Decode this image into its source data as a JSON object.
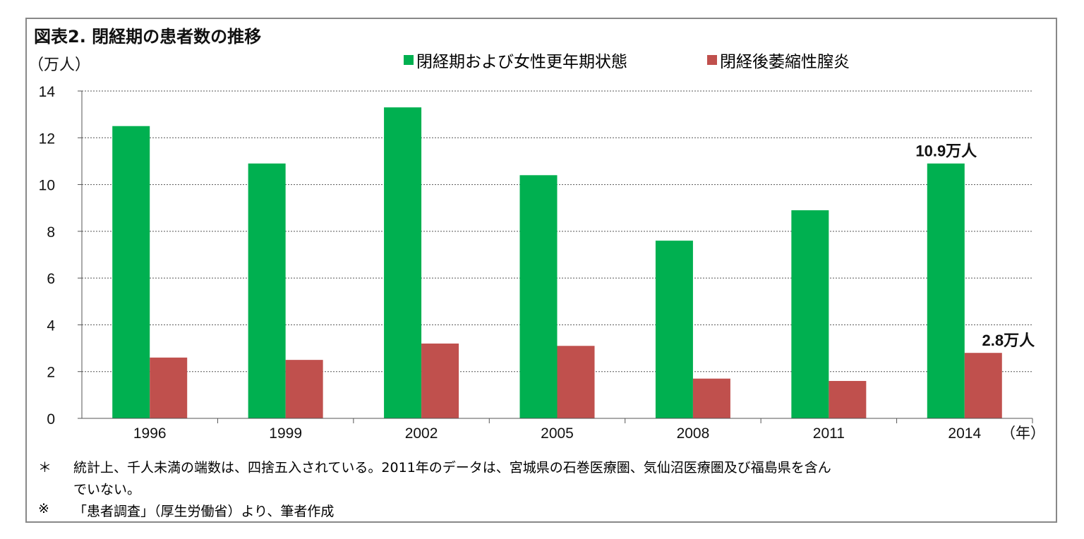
{
  "chart_data": {
    "type": "bar",
    "title": "図表2. 閉経期の患者数の推移",
    "ylabel": "（万人）",
    "xlabel": "（年）",
    "ylim": [
      0,
      14
    ],
    "yticks": [
      0,
      2,
      4,
      6,
      8,
      10,
      12,
      14
    ],
    "grid": true,
    "legend_position": "top",
    "categories": [
      "1996",
      "1999",
      "2002",
      "2005",
      "2008",
      "2011",
      "2014"
    ],
    "series": [
      {
        "name": "閉経期および女性更年期状態",
        "color": "#00b050",
        "values": [
          12.5,
          10.9,
          13.3,
          10.4,
          7.6,
          8.9,
          10.9
        ]
      },
      {
        "name": "閉経後萎縮性膣炎",
        "color": "#c0504d",
        "values": [
          2.6,
          2.5,
          3.2,
          3.1,
          1.7,
          1.6,
          2.8
        ]
      }
    ],
    "annotations": [
      "10.9万人",
      "2.8万人"
    ]
  },
  "notes": [
    {
      "mark": "＊",
      "text": "統計上、千人未満の端数は、四捨五入されている。2011年のデータは、宮城県の石巻医療圏、気仙沼医療圏及び福島県を含ん",
      "text2": "でいない。"
    },
    {
      "mark": "※",
      "text": "「患者調査」（厚生労働省）より、筆者作成"
    }
  ]
}
